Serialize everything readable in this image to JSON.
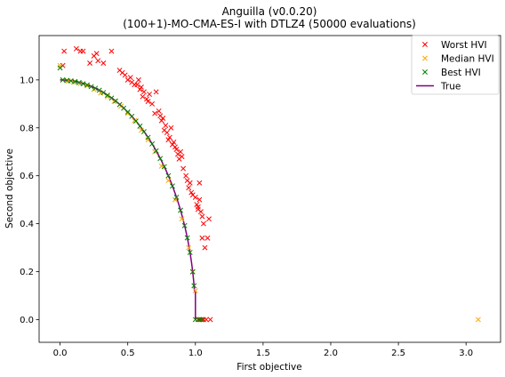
{
  "chart_data": {
    "type": "scatter",
    "title": "Anguilla (v0.0.20)",
    "subtitle": "(100+1)-MO-CMA-ES-I with DTLZ4 (50000 evaluations)",
    "xlabel": "First objective",
    "ylabel": "Second objective",
    "xlim": [
      -0.155,
      3.255
    ],
    "ylim": [
      -0.095,
      1.185
    ],
    "xticks": [
      0.0,
      0.5,
      1.0,
      1.5,
      2.0,
      2.5,
      3.0
    ],
    "xtick_labels": [
      "0.0",
      "0.5",
      "1.0",
      "1.5",
      "2.0",
      "2.5",
      "3.0"
    ],
    "yticks": [
      0.0,
      0.2,
      0.4,
      0.6,
      0.8,
      1.0
    ],
    "ytick_labels": [
      "0.0",
      "0.2",
      "0.4",
      "0.6",
      "0.8",
      "1.0"
    ],
    "grid": false,
    "legend_position": "top-right",
    "series": [
      {
        "name": "Worst HVI",
        "marker": "x",
        "color": "#ff0000",
        "points": [
          [
            0.02,
            1.06
          ],
          [
            0.03,
            1.12
          ],
          [
            0.12,
            1.13
          ],
          [
            0.15,
            1.12
          ],
          [
            0.17,
            1.12
          ],
          [
            0.22,
            1.07
          ],
          [
            0.25,
            1.1
          ],
          [
            0.27,
            1.11
          ],
          [
            0.28,
            1.08
          ],
          [
            0.32,
            1.07
          ],
          [
            0.38,
            1.12
          ],
          [
            0.44,
            1.04
          ],
          [
            0.46,
            1.03
          ],
          [
            0.48,
            1.02
          ],
          [
            0.5,
            1.0
          ],
          [
            0.52,
            1.01
          ],
          [
            0.53,
            0.99
          ],
          [
            0.55,
            0.98
          ],
          [
            0.57,
            0.98
          ],
          [
            0.58,
            1.0
          ],
          [
            0.59,
            0.96
          ],
          [
            0.6,
            0.97
          ],
          [
            0.61,
            0.93
          ],
          [
            0.62,
            0.95
          ],
          [
            0.64,
            0.92
          ],
          [
            0.65,
            0.91
          ],
          [
            0.66,
            0.94
          ],
          [
            0.68,
            0.9
          ],
          [
            0.7,
            0.86
          ],
          [
            0.71,
            0.95
          ],
          [
            0.73,
            0.87
          ],
          [
            0.74,
            0.85
          ],
          [
            0.75,
            0.83
          ],
          [
            0.76,
            0.84
          ],
          [
            0.77,
            0.79
          ],
          [
            0.78,
            0.81
          ],
          [
            0.79,
            0.78
          ],
          [
            0.8,
            0.75
          ],
          [
            0.81,
            0.76
          ],
          [
            0.82,
            0.8
          ],
          [
            0.83,
            0.73
          ],
          [
            0.84,
            0.74
          ],
          [
            0.85,
            0.72
          ],
          [
            0.86,
            0.71
          ],
          [
            0.87,
            0.69
          ],
          [
            0.88,
            0.67
          ],
          [
            0.89,
            0.7
          ],
          [
            0.9,
            0.68
          ],
          [
            0.91,
            0.63
          ],
          [
            0.93,
            0.6
          ],
          [
            0.94,
            0.58
          ],
          [
            0.95,
            0.55
          ],
          [
            0.96,
            0.57
          ],
          [
            0.97,
            0.53
          ],
          [
            0.98,
            0.52
          ],
          [
            1.0,
            0.51
          ],
          [
            1.01,
            0.48
          ],
          [
            1.02,
            0.47
          ],
          [
            1.03,
            0.5
          ],
          [
            1.04,
            0.45
          ],
          [
            1.05,
            0.43
          ],
          [
            1.06,
            0.4
          ],
          [
            1.02,
            0.46
          ],
          [
            1.03,
            0.57
          ],
          [
            1.05,
            0.34
          ],
          [
            1.07,
            0.3
          ],
          [
            1.09,
            0.34
          ],
          [
            1.1,
            0.42
          ],
          [
            1.02,
            0.0
          ],
          [
            1.04,
            0.0
          ],
          [
            1.06,
            0.0
          ],
          [
            1.08,
            0.0
          ],
          [
            1.11,
            0.0
          ]
        ]
      },
      {
        "name": "Median HVI",
        "marker": "x",
        "color": "#ffa500",
        "points": [
          [
            0.0,
            1.06
          ],
          [
            0.02,
            1.0
          ],
          [
            0.06,
            0.995
          ],
          [
            0.1,
            0.99
          ],
          [
            0.15,
            0.985
          ],
          [
            0.2,
            0.975
          ],
          [
            0.25,
            0.96
          ],
          [
            0.3,
            0.945
          ],
          [
            0.35,
            0.93
          ],
          [
            0.4,
            0.91
          ],
          [
            0.45,
            0.89
          ],
          [
            0.5,
            0.86
          ],
          [
            0.55,
            0.83
          ],
          [
            0.6,
            0.79
          ],
          [
            0.65,
            0.75
          ],
          [
            0.7,
            0.7
          ],
          [
            0.75,
            0.64
          ],
          [
            0.8,
            0.58
          ],
          [
            0.85,
            0.5
          ],
          [
            0.9,
            0.42
          ],
          [
            0.95,
            0.3
          ],
          [
            0.98,
            0.2
          ],
          [
            1.0,
            0.12
          ],
          [
            1.05,
            0.0
          ],
          [
            3.09,
            0.0
          ]
        ]
      },
      {
        "name": "Best HVI",
        "marker": "x",
        "color": "#008000",
        "points": [
          [
            0.0,
            1.05
          ],
          [
            0.02,
            1.0
          ],
          [
            0.05,
            0.998
          ],
          [
            0.08,
            0.996
          ],
          [
            0.11,
            0.993
          ],
          [
            0.14,
            0.989
          ],
          [
            0.17,
            0.984
          ],
          [
            0.2,
            0.979
          ],
          [
            0.23,
            0.972
          ],
          [
            0.26,
            0.965
          ],
          [
            0.29,
            0.957
          ],
          [
            0.32,
            0.947
          ],
          [
            0.35,
            0.936
          ],
          [
            0.38,
            0.924
          ],
          [
            0.41,
            0.912
          ],
          [
            0.44,
            0.897
          ],
          [
            0.47,
            0.882
          ],
          [
            0.5,
            0.866
          ],
          [
            0.53,
            0.848
          ],
          [
            0.56,
            0.828
          ],
          [
            0.59,
            0.807
          ],
          [
            0.62,
            0.784
          ],
          [
            0.65,
            0.76
          ],
          [
            0.68,
            0.733
          ],
          [
            0.71,
            0.704
          ],
          [
            0.74,
            0.672
          ],
          [
            0.77,
            0.638
          ],
          [
            0.8,
            0.6
          ],
          [
            0.83,
            0.557
          ],
          [
            0.86,
            0.51
          ],
          [
            0.89,
            0.456
          ],
          [
            0.92,
            0.392
          ],
          [
            0.94,
            0.341
          ],
          [
            0.96,
            0.28
          ],
          [
            0.98,
            0.199
          ],
          [
            0.99,
            0.141
          ],
          [
            1.0,
            0.0
          ],
          [
            1.03,
            0.0
          ],
          [
            1.05,
            0.0
          ]
        ]
      },
      {
        "name": "True",
        "marker": "line",
        "color": "#800080",
        "curve": "quarter-circle x^2 + y^2 = 1, plus vertical drop from (1.0, 0.12) to (1.0, 0.0)"
      }
    ]
  }
}
